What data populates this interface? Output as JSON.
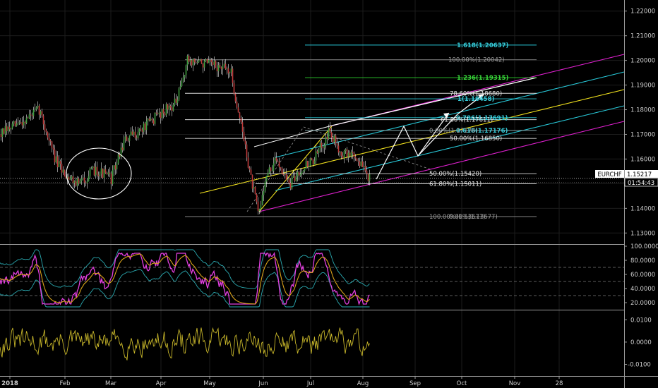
{
  "symbol": "EURCHF",
  "price_label": "1.15217",
  "countdown_label": "01:54:43",
  "colors": {
    "background": "#000000",
    "grid": "#1c1c1c",
    "axis_text": "#cfcfcf",
    "candle_up": "#3f9f3f",
    "candle_down": "#c23a3a",
    "wick": "#e6e6e6",
    "white": "#ffffff",
    "yellow": "#f2e21e",
    "cyan": "#28c8d8",
    "magenta": "#e020d0",
    "green": "#2ed12e",
    "gray_line": "#8a8a8a",
    "fib_gray_text": "#9a9a9a",
    "fib_white_text": "#e6e6e6",
    "fib_cyan_text": "#35c9d6",
    "fib_green_text": "#39d93a",
    "rsi_line": "#e33fe0",
    "rsi_smooth": "#d8a21a",
    "osc_line": "#c7b62a",
    "band": "#2aa9b0"
  },
  "chart_data": [
    {
      "type": "line",
      "panel": "price",
      "series": [
        {
          "name": "",
          "x": [
            "Jan",
            "Feb",
            "Mar",
            "Apr",
            "May",
            "Jun",
            "Jul",
            "Aug"
          ],
          "values": [
            1.17,
            1.152,
            1.152,
            1.185,
            1.2,
            1.137,
            1.171,
            1.152
          ]
        }
      ],
      "ylim": [
        1.1255,
        1.2245
      ],
      "yticks": [
        "1.22000",
        "1.21000",
        "1.20000",
        "1.19000",
        "1.18000",
        "1.17000",
        "1.16000",
        "1.15000",
        "1.14000",
        "1.13000"
      ],
      "xticks": [
        "2018",
        "Feb",
        "Mar",
        "Apr",
        "May",
        "Jun",
        "Jul",
        "Aug",
        "Sep",
        "Oct",
        "Nov",
        "28"
      ],
      "current_price": 1.15217,
      "fib_levels": [
        {
          "label": "1.618(1.20637)",
          "value": 1.20637,
          "color": "cyan"
        },
        {
          "label": "100.00%(1.20042)",
          "value": 1.20042,
          "color": "gray"
        },
        {
          "label": "1.236(1.19315)",
          "value": 1.19315,
          "color": "green"
        },
        {
          "label": "78.60%(1.18680)",
          "value": 1.1868,
          "color": "white"
        },
        {
          "label": "1(1.18458)",
          "value": 1.18458,
          "color": "cyan"
        },
        {
          "label": "0.786(1.17691)",
          "value": 1.17691,
          "color": "cyan"
        },
        {
          "label": "61.80%(1.17611)",
          "value": 1.17611,
          "color": "white"
        },
        {
          "label": "0.618(1.17176)",
          "value": 1.17176,
          "color": "cyan"
        },
        {
          "label": "0.00%(1.17176)",
          "value": 1.17176,
          "color": "gray"
        },
        {
          "label": "50.00%(1.16850)",
          "value": 1.1685,
          "color": "white"
        },
        {
          "label": "50.00%(1.15420)",
          "value": 1.1542,
          "color": "white"
        },
        {
          "label": "61.80%(1.15011)",
          "value": 1.15011,
          "color": "white"
        },
        {
          "label": "100.00%(1.13677)",
          "value": 1.13677,
          "color": "gray"
        },
        {
          "label": "0.00%(1.13677)",
          "value": 1.13677,
          "color": "gray"
        }
      ]
    },
    {
      "type": "line",
      "panel": "rsi",
      "ylim": [
        10,
        102
      ],
      "yticks": [
        "100.0000",
        "80.0000",
        "60.0000",
        "40.0000",
        "20.0000"
      ],
      "levels": [
        70,
        50,
        30
      ]
    },
    {
      "type": "line",
      "panel": "oscillator",
      "ylim": [
        -0.0152,
        0.0142
      ],
      "yticks": [
        "0.0100",
        "0.0000",
        "-0.0100"
      ]
    }
  ]
}
